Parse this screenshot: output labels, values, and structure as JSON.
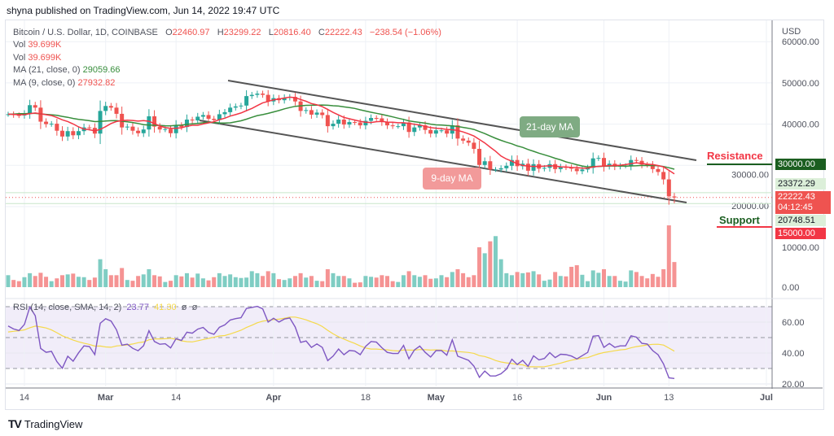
{
  "header": {
    "published": "shyna published on TradingView.com, Jun 14, 2022 19:47 UTC"
  },
  "legend": {
    "symbol": "Bitcoin / U.S. Dollar, 1D, COINBASE",
    "open_label": "O",
    "open": "22460.97",
    "high_label": "H",
    "high": "23299.22",
    "low_label": "L",
    "low": "20816.40",
    "close_label": "C",
    "close": "22222.43",
    "change": "−238.54 (−1.06%)",
    "vol1_label": "Vol",
    "vol1": "39.699K",
    "vol2_label": "Vol",
    "vol2": "39.699K",
    "ma21_label": "MA (21, close, 0)",
    "ma21": "29059.66",
    "ma9_label": "MA (9, close, 0)",
    "ma9": "27932.82"
  },
  "rsi_legend": {
    "label": "RSI (14, close, SMA, 14, 2)",
    "rsi": "23.77",
    "sma": "41.30",
    "extra1": "ø",
    "extra2": "ø"
  },
  "annotations": {
    "ma21": "21-day MA",
    "ma9": "9-day MA",
    "resistance": "Resistance",
    "support": "Support"
  },
  "price_tags": {
    "resistance": "30000.00",
    "high_marker": "23372.29",
    "last": "22222.43",
    "countdown": "04:12:45",
    "low_marker": "20748.51",
    "support": "15000.00"
  },
  "footer": {
    "brand": "TradingView"
  },
  "colors": {
    "up": "#26a69a",
    "down": "#ef5350",
    "ma21": "#388e3c",
    "ma9": "#f23645",
    "rsi": "#7e57c2",
    "rsi_sma": "#f5d94a",
    "resistance": "#1b5e20",
    "support": "#f23645"
  },
  "chart_data": {
    "type": "candlestick",
    "title": "Bitcoin / U.S. Dollar, 1D, COINBASE",
    "currency_label": "USD",
    "start_date": "2022-02-11",
    "price_ticks": [
      "60000.00",
      "50000.00",
      "40000.00",
      "30000.00",
      "20000.00"
    ],
    "volume_ticks": [
      "10000.00",
      "0.00"
    ],
    "rsi_ticks": [
      "60.00",
      "40.00",
      "20.00"
    ],
    "x_ticks": [
      "14",
      "Mar",
      "14",
      "Apr",
      "18",
      "May",
      "16",
      "Jun",
      "13",
      "Jul"
    ],
    "closes": [
      42400,
      42200,
      42100,
      42600,
      44600,
      44000,
      40600,
      40000,
      40100,
      38400,
      37000,
      38300,
      37300,
      38300,
      39200,
      39100,
      37700,
      43200,
      44400,
      44000,
      42500,
      39200,
      39400,
      38400,
      37800,
      38700,
      41900,
      39400,
      38700,
      38800,
      37800,
      39700,
      39300,
      41100,
      40900,
      41800,
      42200,
      41300,
      41000,
      42400,
      42900,
      44000,
      44300,
      44500,
      46800,
      47100,
      47400,
      47100,
      45500,
      46300,
      45800,
      46400,
      46600,
      45500,
      43200,
      43400,
      42300,
      42800,
      42200,
      39500,
      40100,
      41100,
      39900,
      40500,
      40400,
      39700,
      40800,
      41500,
      41400,
      40500,
      39700,
      39500,
      39500,
      40400,
      38100,
      39200,
      39700,
      38600,
      37700,
      38500,
      38500,
      37700,
      39700,
      36500,
      36000,
      35500,
      34000,
      30100,
      31000,
      29000,
      29000,
      29300,
      29900,
      31300,
      29800,
      30400,
      28700,
      30300,
      29200,
      29400,
      30300,
      29100,
      29600,
      29500,
      29200,
      28600,
      29000,
      29400,
      31700,
      31800,
      29800,
      30400,
      29700,
      29900,
      29900,
      31300,
      31100,
      30200,
      30100,
      29100,
      28400,
      26600,
      22500,
      22222.43
    ],
    "volumes": [
      3000,
      1800,
      1500,
      2500,
      3500,
      2800,
      3600,
      2600,
      1500,
      2200,
      3000,
      3200,
      3400,
      2600,
      2500,
      1800,
      2400,
      7000,
      4500,
      3000,
      3000,
      4800,
      1800,
      1600,
      2800,
      3200,
      4500,
      3000,
      2700,
      1300,
      1600,
      3000,
      2700,
      3500,
      2400,
      3400,
      2200,
      1700,
      2500,
      3500,
      2800,
      3200,
      2500,
      2300,
      2400,
      4000,
      3500,
      2800,
      4000,
      3500,
      2000,
      1800,
      2200,
      2800,
      3500,
      2400,
      2800,
      1600,
      1500,
      4500,
      3500,
      2800,
      2800,
      2200,
      1100,
      1200,
      2800,
      2600,
      2400,
      3000,
      2800,
      1500,
      1300,
      3000,
      4000,
      3000,
      2600,
      3000,
      2100,
      2200,
      3000,
      2500,
      3800,
      4500,
      3500,
      2500,
      3000,
      10000,
      8500,
      11500,
      12800,
      7000,
      3500,
      3000,
      3800,
      3500,
      3700,
      4000,
      3200,
      1600,
      1900,
      3800,
      2800,
      2700,
      5100,
      5500,
      3100,
      1500,
      4200,
      3600,
      4500,
      2800,
      2800,
      1600,
      1400,
      4200,
      3800,
      2800,
      2200,
      3300,
      2600,
      4500,
      15500,
      6300
    ],
    "last_candle": {
      "open": 22460.97,
      "high": 23299.22,
      "low": 20816.4,
      "close": 22222.43
    },
    "horizontal_levels": {
      "resistance": 30000,
      "support": 15000
    },
    "channel": {
      "upper": [
        [
          "2022-03-29",
          50000
        ],
        [
          "2022-06-20",
          31000
        ]
      ],
      "lower": [
        [
          "2022-03-20",
          41000
        ],
        [
          "2022-06-15",
          20500
        ]
      ]
    },
    "indicators": [
      "MA 21",
      "MA 9",
      "Volume",
      "RSI 14 with SMA 14"
    ],
    "rsi_bands": [
      70,
      50,
      30
    ],
    "grid": true
  }
}
